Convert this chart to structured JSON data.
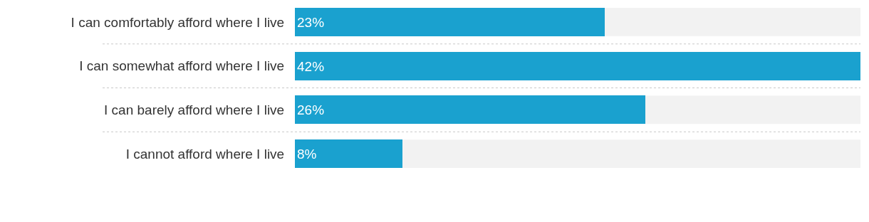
{
  "chart_data": {
    "type": "bar",
    "orientation": "horizontal",
    "categories": [
      "I can comfortably afford where I live",
      "I can somewhat afford where I live",
      "I can barely afford where I live",
      "I cannot afford where I live"
    ],
    "values": [
      23,
      42,
      26,
      8
    ],
    "value_labels": [
      "23%",
      "42%",
      "26%",
      "8%"
    ],
    "color": "#1aa1cf",
    "legend": false,
    "grid": false
  }
}
